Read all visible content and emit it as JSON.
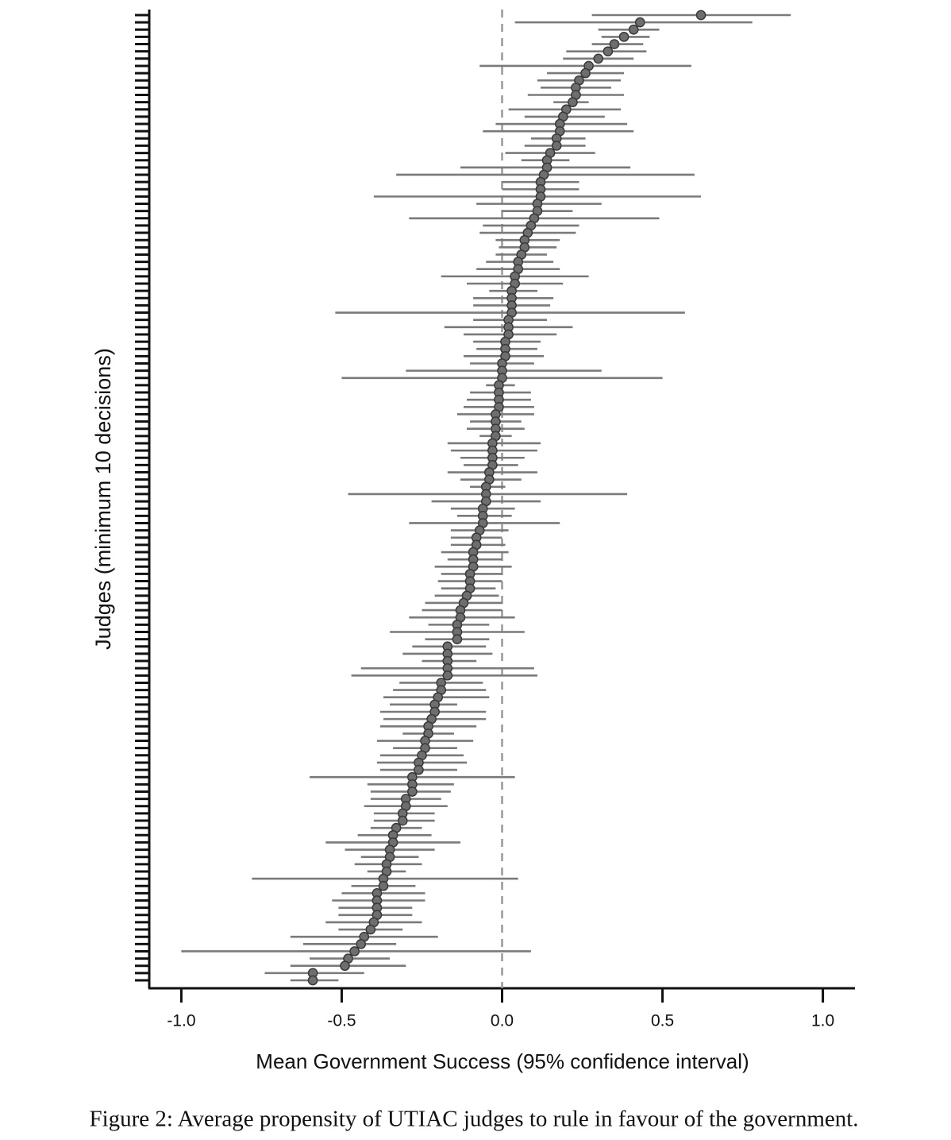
{
  "chart_data": {
    "type": "forest",
    "xlabel": "Mean Government Success (95% confidence interval)",
    "ylabel": "Judges (minimum 10 decisions)",
    "caption": "Figure 2: Average propensity of UTIAC judges to rule in favour of the government.",
    "xlim": [
      -1.1,
      1.1
    ],
    "xticks": [
      {
        "value": -1,
        "label": "-1.0"
      },
      {
        "value": -0.5,
        "label": "-0.5"
      },
      {
        "value": 0,
        "label": "0.0"
      },
      {
        "value": 0.5,
        "label": "0.5"
      },
      {
        "value": 1,
        "label": "1.0"
      }
    ],
    "vline": 0,
    "color": "#6e6e6e",
    "categories": [
      null,
      null,
      null,
      null,
      null,
      null,
      null,
      null,
      null,
      null,
      null,
      null,
      null,
      null,
      null,
      null,
      null,
      null,
      null,
      null,
      null,
      null,
      null,
      null,
      null,
      null,
      null,
      null,
      null,
      null,
      null,
      null,
      null,
      null,
      null,
      null,
      null,
      null,
      null,
      null,
      null,
      null,
      null,
      null,
      null,
      null,
      null,
      null,
      null,
      null,
      null,
      null,
      null,
      null,
      null,
      null,
      null,
      null,
      null,
      null,
      null,
      null,
      null,
      null,
      null,
      null,
      null,
      null,
      null,
      null,
      null,
      null,
      null,
      null,
      null,
      null,
      null,
      null,
      null,
      null,
      null,
      null,
      null,
      null,
      null,
      null,
      null,
      null,
      null,
      null,
      null,
      null,
      null,
      null,
      null,
      null,
      null,
      null,
      null,
      null,
      null,
      null,
      null,
      null,
      null,
      null,
      null,
      null,
      null,
      null,
      null,
      null,
      null,
      null,
      null,
      null,
      null,
      null,
      null,
      null,
      null,
      null,
      null,
      null,
      null,
      null,
      null,
      null,
      null,
      null,
      null,
      null,
      null,
      null
    ],
    "values": [
      0.62,
      0.43,
      0.41,
      0.38,
      0.35,
      0.33,
      0.3,
      0.27,
      0.26,
      0.24,
      0.23,
      0.23,
      0.22,
      0.2,
      0.19,
      0.18,
      0.18,
      0.17,
      0.17,
      0.15,
      0.14,
      0.14,
      0.13,
      0.12,
      0.12,
      0.12,
      0.11,
      0.11,
      0.1,
      0.09,
      0.08,
      0.07,
      0.07,
      0.06,
      0.05,
      0.05,
      0.04,
      0.04,
      0.03,
      0.03,
      0.03,
      0.03,
      0.02,
      0.02,
      0.02,
      0.01,
      0.01,
      0.01,
      0.0,
      0.0,
      0.0,
      -0.01,
      -0.01,
      -0.01,
      -0.01,
      -0.02,
      -0.02,
      -0.02,
      -0.02,
      -0.03,
      -0.03,
      -0.03,
      -0.03,
      -0.04,
      -0.04,
      -0.05,
      -0.05,
      -0.05,
      -0.06,
      -0.06,
      -0.06,
      -0.07,
      -0.08,
      -0.08,
      -0.09,
      -0.09,
      -0.09,
      -0.1,
      -0.1,
      -0.1,
      -0.11,
      -0.12,
      -0.13,
      -0.13,
      -0.14,
      -0.14,
      -0.14,
      -0.17,
      -0.17,
      -0.17,
      -0.17,
      -0.17,
      -0.19,
      -0.19,
      -0.2,
      -0.21,
      -0.21,
      -0.22,
      -0.23,
      -0.23,
      -0.24,
      -0.24,
      -0.25,
      -0.26,
      -0.26,
      -0.28,
      -0.28,
      -0.28,
      -0.3,
      -0.3,
      -0.31,
      -0.31,
      -0.33,
      -0.34,
      -0.34,
      -0.35,
      -0.35,
      -0.36,
      -0.36,
      -0.37,
      -0.37,
      -0.39,
      -0.39,
      -0.39,
      -0.39,
      -0.4,
      -0.41,
      -0.43,
      -0.44,
      -0.46,
      -0.48,
      -0.49,
      -0.59,
      -0.59
    ],
    "ci_low": [
      0.28,
      0.04,
      0.3,
      0.31,
      0.28,
      0.2,
      0.19,
      -0.07,
      0.14,
      0.11,
      0.12,
      0.08,
      0.16,
      0.02,
      0.07,
      -0.02,
      -0.06,
      0.09,
      0.07,
      0.01,
      0.06,
      -0.13,
      -0.33,
      0.0,
      0.0,
      -0.4,
      -0.08,
      0.0,
      -0.29,
      -0.06,
      -0.07,
      -0.02,
      -0.01,
      -0.02,
      -0.05,
      -0.08,
      -0.19,
      -0.11,
      -0.04,
      -0.09,
      -0.09,
      -0.52,
      -0.09,
      -0.18,
      -0.12,
      -0.09,
      -0.08,
      -0.12,
      -0.1,
      -0.3,
      -0.5,
      -0.05,
      -0.1,
      -0.11,
      -0.12,
      -0.14,
      -0.1,
      -0.11,
      -0.07,
      -0.17,
      -0.16,
      -0.13,
      -0.12,
      -0.17,
      -0.13,
      -0.1,
      -0.48,
      -0.22,
      -0.16,
      -0.14,
      -0.29,
      -0.16,
      -0.16,
      -0.16,
      -0.19,
      -0.17,
      -0.21,
      -0.19,
      -0.2,
      -0.19,
      -0.21,
      -0.24,
      -0.25,
      -0.29,
      -0.23,
      -0.35,
      -0.24,
      -0.28,
      -0.31,
      -0.25,
      -0.44,
      -0.47,
      -0.32,
      -0.34,
      -0.37,
      -0.35,
      -0.38,
      -0.37,
      -0.38,
      -0.31,
      -0.39,
      -0.34,
      -0.38,
      -0.39,
      -0.38,
      -0.6,
      -0.42,
      -0.41,
      -0.41,
      -0.43,
      -0.4,
      -0.4,
      -0.41,
      -0.45,
      -0.55,
      -0.49,
      -0.44,
      -0.46,
      -0.42,
      -0.78,
      -0.47,
      -0.5,
      -0.53,
      -0.51,
      -0.51,
      -0.55,
      -0.51,
      -0.66,
      -0.62,
      -1.0,
      -0.6,
      -0.66,
      -0.74,
      -0.66
    ],
    "ci_high": [
      0.9,
      0.78,
      0.49,
      0.46,
      0.44,
      0.45,
      0.41,
      0.59,
      0.38,
      0.37,
      0.34,
      0.38,
      0.27,
      0.37,
      0.32,
      0.39,
      0.41,
      0.26,
      0.26,
      0.29,
      0.21,
      0.4,
      0.6,
      0.24,
      0.24,
      0.62,
      0.31,
      0.22,
      0.49,
      0.24,
      0.23,
      0.18,
      0.17,
      0.14,
      0.16,
      0.18,
      0.27,
      0.19,
      0.11,
      0.16,
      0.15,
      0.57,
      0.14,
      0.22,
      0.17,
      0.12,
      0.11,
      0.13,
      0.1,
      0.31,
      0.5,
      0.04,
      0.09,
      0.09,
      0.1,
      0.1,
      0.06,
      0.07,
      0.03,
      0.12,
      0.11,
      0.07,
      0.05,
      0.11,
      0.06,
      0.01,
      0.39,
      0.12,
      0.04,
      0.03,
      0.18,
      0.02,
      0.0,
      0.01,
      0.02,
      0.0,
      0.03,
      0.0,
      0.0,
      -0.02,
      -0.01,
      0.0,
      0.0,
      0.04,
      -0.04,
      0.07,
      -0.04,
      -0.05,
      -0.03,
      -0.08,
      0.1,
      0.11,
      -0.06,
      -0.05,
      -0.04,
      -0.14,
      -0.05,
      -0.05,
      -0.08,
      -0.15,
      -0.09,
      -0.14,
      -0.12,
      -0.11,
      -0.14,
      0.04,
      -0.15,
      -0.16,
      -0.19,
      -0.17,
      -0.21,
      -0.21,
      -0.25,
      -0.22,
      -0.13,
      -0.21,
      -0.26,
      -0.25,
      -0.3,
      0.05,
      -0.27,
      -0.24,
      -0.24,
      -0.28,
      -0.28,
      -0.25,
      -0.31,
      -0.2,
      -0.33,
      0.09,
      -0.35,
      -0.3,
      -0.43,
      -0.51
    ]
  }
}
